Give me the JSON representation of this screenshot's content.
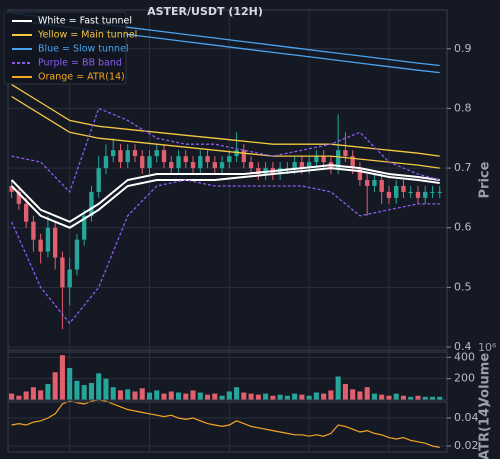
{
  "chart_data": [
    {
      "type": "candlestick",
      "title": "ASTER/USDT (12H)",
      "ylabel": "Price",
      "x": [
        0,
        1,
        2,
        3,
        4,
        5,
        6,
        7,
        8,
        9,
        10,
        11,
        12,
        13,
        14,
        15,
        16,
        17,
        18,
        19,
        20,
        21,
        22,
        23,
        24,
        25,
        26,
        27,
        28,
        29,
        30,
        31,
        32,
        33,
        34,
        35,
        36,
        37,
        38,
        39,
        40,
        41,
        42,
        43,
        44,
        45,
        46,
        47,
        48,
        49,
        50,
        51,
        52,
        53,
        54,
        55,
        56,
        57,
        58,
        59
      ],
      "open": [
        0.67,
        0.66,
        0.64,
        0.61,
        0.58,
        0.56,
        0.6,
        0.55,
        0.5,
        0.53,
        0.58,
        0.62,
        0.66,
        0.7,
        0.72,
        0.73,
        0.71,
        0.73,
        0.72,
        0.7,
        0.72,
        0.73,
        0.71,
        0.7,
        0.72,
        0.71,
        0.7,
        0.72,
        0.71,
        0.7,
        0.71,
        0.72,
        0.73,
        0.71,
        0.7,
        0.69,
        0.7,
        0.69,
        0.7,
        0.7,
        0.71,
        0.7,
        0.71,
        0.72,
        0.71,
        0.7,
        0.73,
        0.72,
        0.7,
        0.68,
        0.67,
        0.68,
        0.66,
        0.65,
        0.67,
        0.66,
        0.66,
        0.65,
        0.66,
        0.66
      ],
      "high": [
        0.68,
        0.67,
        0.65,
        0.62,
        0.59,
        0.62,
        0.61,
        0.56,
        0.55,
        0.59,
        0.63,
        0.67,
        0.72,
        0.74,
        0.75,
        0.74,
        0.74,
        0.74,
        0.73,
        0.73,
        0.74,
        0.74,
        0.72,
        0.73,
        0.73,
        0.72,
        0.73,
        0.73,
        0.72,
        0.72,
        0.73,
        0.76,
        0.74,
        0.72,
        0.71,
        0.71,
        0.71,
        0.71,
        0.71,
        0.72,
        0.72,
        0.72,
        0.73,
        0.73,
        0.72,
        0.79,
        0.76,
        0.73,
        0.71,
        0.69,
        0.69,
        0.69,
        0.67,
        0.68,
        0.68,
        0.67,
        0.67,
        0.67,
        0.67,
        0.67
      ],
      "low": [
        0.65,
        0.63,
        0.6,
        0.56,
        0.54,
        0.55,
        0.53,
        0.43,
        0.47,
        0.52,
        0.57,
        0.61,
        0.65,
        0.69,
        0.71,
        0.7,
        0.7,
        0.71,
        0.69,
        0.69,
        0.71,
        0.7,
        0.69,
        0.69,
        0.7,
        0.69,
        0.69,
        0.7,
        0.69,
        0.69,
        0.7,
        0.71,
        0.7,
        0.69,
        0.68,
        0.68,
        0.68,
        0.68,
        0.69,
        0.69,
        0.69,
        0.69,
        0.7,
        0.7,
        0.69,
        0.69,
        0.71,
        0.69,
        0.67,
        0.62,
        0.66,
        0.64,
        0.64,
        0.64,
        0.65,
        0.65,
        0.64,
        0.64,
        0.65,
        0.65
      ],
      "close": [
        0.66,
        0.64,
        0.61,
        0.58,
        0.56,
        0.6,
        0.55,
        0.5,
        0.53,
        0.58,
        0.62,
        0.66,
        0.7,
        0.72,
        0.73,
        0.71,
        0.73,
        0.72,
        0.7,
        0.72,
        0.73,
        0.71,
        0.7,
        0.72,
        0.71,
        0.7,
        0.72,
        0.71,
        0.7,
        0.71,
        0.72,
        0.73,
        0.71,
        0.7,
        0.69,
        0.7,
        0.69,
        0.7,
        0.7,
        0.71,
        0.7,
        0.71,
        0.72,
        0.71,
        0.7,
        0.73,
        0.72,
        0.7,
        0.68,
        0.67,
        0.68,
        0.66,
        0.65,
        0.67,
        0.66,
        0.66,
        0.65,
        0.66,
        0.66,
        0.66
      ],
      "up_color": "#26a69a",
      "down_color": "#e0606e",
      "line_x": [
        0,
        4,
        8,
        12,
        16,
        20,
        24,
        28,
        32,
        36,
        40,
        44,
        48,
        52,
        56,
        59
      ],
      "overlays": [
        {
          "name": "White = Fast tunnel",
          "color": "#ffffff",
          "dashed": false,
          "upper": [
            0.68,
            0.63,
            0.61,
            0.64,
            0.68,
            0.69,
            0.69,
            0.69,
            0.69,
            0.695,
            0.7,
            0.705,
            0.7,
            0.69,
            0.685,
            0.68
          ],
          "lower": [
            0.67,
            0.62,
            0.6,
            0.63,
            0.67,
            0.68,
            0.68,
            0.68,
            0.685,
            0.69,
            0.695,
            0.7,
            0.695,
            0.685,
            0.68,
            0.675
          ]
        },
        {
          "name": "Yellow = Main tunnel",
          "color": "#f5c842",
          "dashed": false,
          "upper": [
            0.84,
            0.81,
            0.78,
            0.77,
            0.765,
            0.76,
            0.755,
            0.75,
            0.745,
            0.74,
            0.74,
            0.74,
            0.735,
            0.73,
            0.725,
            0.72
          ],
          "lower": [
            0.82,
            0.79,
            0.76,
            0.75,
            0.745,
            0.74,
            0.735,
            0.73,
            0.725,
            0.72,
            0.72,
            0.72,
            0.715,
            0.71,
            0.705,
            0.7
          ]
        },
        {
          "name": "Blue = Slow tunnel",
          "color": "#4aa3ef",
          "dashed": false,
          "upper": [
            0.96,
            0.954,
            0.948,
            0.942,
            0.936,
            0.93,
            0.924,
            0.918,
            0.912,
            0.906,
            0.9,
            0.894,
            0.888,
            0.882,
            0.876,
            0.872
          ],
          "lower": [
            0.948,
            0.942,
            0.936,
            0.93,
            0.924,
            0.918,
            0.912,
            0.906,
            0.9,
            0.894,
            0.888,
            0.882,
            0.876,
            0.87,
            0.864,
            0.86
          ]
        },
        {
          "name": "Purple = BB band",
          "color": "#8a5cf0",
          "dashed": true,
          "upper": [
            0.72,
            0.71,
            0.66,
            0.8,
            0.78,
            0.75,
            0.74,
            0.74,
            0.73,
            0.72,
            0.73,
            0.74,
            0.76,
            0.71,
            0.69,
            0.68
          ],
          "lower": [
            0.61,
            0.5,
            0.44,
            0.5,
            0.62,
            0.67,
            0.68,
            0.67,
            0.67,
            0.67,
            0.67,
            0.66,
            0.62,
            0.63,
            0.64,
            0.64
          ]
        }
      ],
      "xlim": [
        -0.5,
        60
      ],
      "xticks": [
        8,
        19,
        30,
        41,
        52
      ],
      "ylim": [
        0.395,
        0.965
      ],
      "yticks": [
        0.4,
        0.5,
        0.6,
        0.7,
        0.8,
        0.9
      ],
      "grid": true
    },
    {
      "type": "bar",
      "ylabel": "Volume",
      "scale_label": "10⁶",
      "values": [
        60,
        40,
        80,
        120,
        90,
        150,
        260,
        420,
        300,
        180,
        140,
        160,
        250,
        200,
        120,
        90,
        100,
        80,
        110,
        70,
        90,
        60,
        80,
        70,
        60,
        90,
        70,
        50,
        60,
        40,
        80,
        120,
        70,
        60,
        50,
        60,
        40,
        50,
        40,
        60,
        50,
        40,
        70,
        60,
        90,
        220,
        150,
        100,
        80,
        120,
        60,
        50,
        40,
        60,
        40,
        30,
        40,
        30,
        30,
        30
      ],
      "xlim": [
        -0.5,
        60
      ],
      "ylim": [
        0,
        450
      ],
      "yticks": [
        200,
        400
      ],
      "grid": true
    },
    {
      "type": "line",
      "ylabel": "ATR(14)",
      "series": [
        {
          "name": "Orange = ATR(14)",
          "color": "#f5a623",
          "values": [
            0.035,
            0.036,
            0.035,
            0.037,
            0.038,
            0.04,
            0.043,
            0.05,
            0.052,
            0.051,
            0.05,
            0.052,
            0.053,
            0.052,
            0.05,
            0.048,
            0.046,
            0.045,
            0.044,
            0.043,
            0.042,
            0.041,
            0.042,
            0.04,
            0.039,
            0.04,
            0.038,
            0.036,
            0.035,
            0.034,
            0.035,
            0.038,
            0.036,
            0.034,
            0.033,
            0.032,
            0.031,
            0.03,
            0.029,
            0.028,
            0.028,
            0.027,
            0.028,
            0.027,
            0.029,
            0.035,
            0.034,
            0.032,
            0.03,
            0.031,
            0.029,
            0.028,
            0.026,
            0.025,
            0.026,
            0.024,
            0.023,
            0.022,
            0.02,
            0.019
          ]
        }
      ],
      "xlim": [
        -0.5,
        60
      ],
      "ylim": [
        0.0157,
        0.0514
      ],
      "yticks": [
        0.02,
        0.04
      ],
      "grid": true
    }
  ]
}
